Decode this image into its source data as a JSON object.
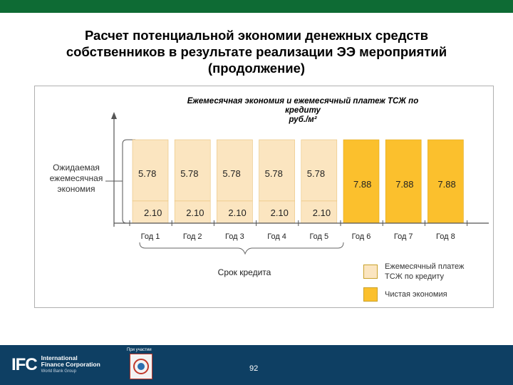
{
  "title_lines": [
    "Расчет потенциальной экономии денежных средств",
    "собственников в результате реализации ЭЭ мероприятий",
    "(продолжение)"
  ],
  "chart_data": {
    "type": "bar",
    "title_lines": [
      "Ежемесячная  экономия и ежемесячный платеж ТСЖ по",
      "кредиту",
      "руб./м²"
    ],
    "categories": [
      "Год 1",
      "Год 2",
      "Год 3",
      "Год 4",
      "Год 5",
      "Год 6",
      "Год 7",
      "Год 8"
    ],
    "series": [
      {
        "name": "Ежемесячный платеж ТСЖ по кредиту",
        "values": [
          2.1,
          2.1,
          2.1,
          2.1,
          2.1,
          0,
          0,
          0
        ],
        "labels": [
          "2.10",
          "2.10",
          "2.10",
          "2.10",
          "2.10",
          "",
          "",
          ""
        ],
        "color": "#fbe5c0"
      },
      {
        "name": "Чистая экономия",
        "values": [
          5.78,
          5.78,
          5.78,
          5.78,
          5.78,
          7.88,
          7.88,
          7.88
        ],
        "labels": [
          "5.78",
          "5.78",
          "5.78",
          "5.78",
          "5.78",
          "7.88",
          "7.88",
          "7.88"
        ],
        "color": "#fbc02d"
      }
    ],
    "stacked": true,
    "bar_colors": {
      "payment": "#fbe5c0",
      "savings_fill_years_1_5": "#fbe5c0",
      "savings_fill_years_6_8": "#fbc02d"
    },
    "ylim": [
      0,
      7.88
    ],
    "grid": false,
    "legend_position": "bottom-right",
    "side_label_lines": [
      "Ожидаемая",
      "ежемесячная",
      "экономия"
    ],
    "brace_label": "Срок кредита"
  },
  "legend": [
    {
      "label_lines": [
        "Ежемесячный платеж",
        "ТСЖ по кредиту"
      ],
      "color": "#fbe5c0"
    },
    {
      "label_lines": [
        "Чистая экономия"
      ],
      "color": "#fbc02d"
    }
  ],
  "footer": {
    "logo": "IFC",
    "org_lines": [
      "International",
      "Finance Corporation"
    ],
    "org_sub": "World Bank Group",
    "partner_label": "При участии",
    "page_number": "92",
    "colors": {
      "bar": "#0e3f63",
      "topbar": "#0e6b34"
    }
  }
}
